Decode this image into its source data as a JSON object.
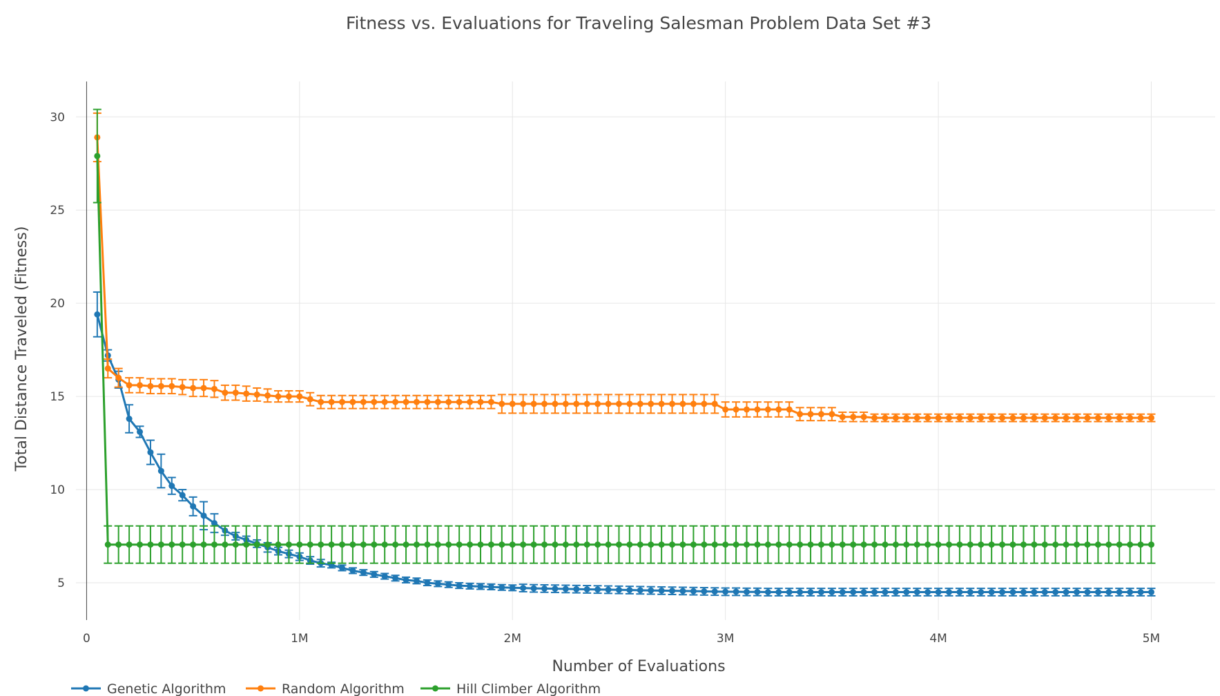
{
  "chart_data": {
    "type": "line",
    "title": "Fitness vs. Evaluations for Traveling Salesman Problem Data Set #3",
    "xlabel": "Number of Evaluations",
    "ylabel": "Total Distance Traveled (Fitness)",
    "xlim": [
      -50000,
      5300000
    ],
    "ylim": [
      3,
      31.9
    ],
    "x_ticks": [
      {
        "value": 0,
        "label": "0"
      },
      {
        "value": 1000000,
        "label": "1M"
      },
      {
        "value": 2000000,
        "label": "2M"
      },
      {
        "value": 3000000,
        "label": "3M"
      },
      {
        "value": 4000000,
        "label": "4M"
      },
      {
        "value": 5000000,
        "label": "5M"
      }
    ],
    "y_ticks": [
      {
        "value": 5,
        "label": "5"
      },
      {
        "value": 10,
        "label": "10"
      },
      {
        "value": 15,
        "label": "15"
      },
      {
        "value": 20,
        "label": "20"
      },
      {
        "value": 25,
        "label": "25"
      },
      {
        "value": 30,
        "label": "30"
      }
    ],
    "grid": true,
    "legend_position": "bottom-left",
    "x": {
      "start": 50000,
      "step": 50000,
      "count": 100
    },
    "series": [
      {
        "name": "Genetic Algorithm",
        "color": "#1f77b4",
        "values": [
          19.4,
          17.2,
          15.9,
          13.8,
          13.1,
          12.0,
          11.0,
          10.2,
          9.7,
          9.1,
          8.6,
          8.2,
          7.8,
          7.5,
          7.3,
          7.1,
          6.9,
          6.7,
          6.55,
          6.4,
          6.2,
          6.05,
          5.95,
          5.8,
          5.65,
          5.55,
          5.45,
          5.35,
          5.25,
          5.15,
          5.1,
          5.0,
          4.95,
          4.9,
          4.85,
          4.82,
          4.8,
          4.78,
          4.75,
          4.73,
          4.72,
          4.7,
          4.69,
          4.68,
          4.67,
          4.66,
          4.65,
          4.64,
          4.63,
          4.62,
          4.61,
          4.6,
          4.59,
          4.58,
          4.57,
          4.56,
          4.55,
          4.54,
          4.53,
          4.52,
          4.52,
          4.51,
          4.51,
          4.5,
          4.5,
          4.5,
          4.5,
          4.5,
          4.5,
          4.5,
          4.5,
          4.5,
          4.5,
          4.5,
          4.5,
          4.5,
          4.5,
          4.5,
          4.5,
          4.5,
          4.5,
          4.5,
          4.5,
          4.5,
          4.5,
          4.5,
          4.5,
          4.5,
          4.5,
          4.5,
          4.5,
          4.5,
          4.5,
          4.5,
          4.5,
          4.5,
          4.5,
          4.5,
          4.5,
          4.5
        ],
        "errors": [
          1.2,
          0.3,
          0.45,
          0.75,
          0.3,
          0.65,
          0.9,
          0.45,
          0.3,
          0.5,
          0.75,
          0.5,
          0.25,
          0.2,
          0.2,
          0.2,
          0.25,
          0.2,
          0.2,
          0.2,
          0.2,
          0.2,
          0.15,
          0.15,
          0.15,
          0.15,
          0.15,
          0.15,
          0.15,
          0.15,
          0.15,
          0.15,
          0.15,
          0.15,
          0.15,
          0.15,
          0.15,
          0.15,
          0.15,
          0.15,
          0.2,
          0.2,
          0.2,
          0.2,
          0.2,
          0.2,
          0.2,
          0.2,
          0.2,
          0.2,
          0.2,
          0.2,
          0.2,
          0.2,
          0.2,
          0.2,
          0.2,
          0.2,
          0.2,
          0.2,
          0.2,
          0.2,
          0.2,
          0.2,
          0.2,
          0.2,
          0.2,
          0.2,
          0.2,
          0.2,
          0.2,
          0.2,
          0.2,
          0.2,
          0.2,
          0.2,
          0.2,
          0.2,
          0.2,
          0.2,
          0.2,
          0.2,
          0.2,
          0.2,
          0.2,
          0.2,
          0.2,
          0.2,
          0.2,
          0.2,
          0.2,
          0.2,
          0.2,
          0.2,
          0.2,
          0.2,
          0.2,
          0.2,
          0.2,
          0.2
        ]
      },
      {
        "name": "Random Algorithm",
        "color": "#ff7f0e",
        "values": [
          28.9,
          16.5,
          16.0,
          15.6,
          15.6,
          15.55,
          15.55,
          15.55,
          15.5,
          15.45,
          15.45,
          15.4,
          15.2,
          15.2,
          15.15,
          15.1,
          15.05,
          15.0,
          15.0,
          15.0,
          14.85,
          14.7,
          14.7,
          14.7,
          14.7,
          14.7,
          14.7,
          14.7,
          14.7,
          14.7,
          14.7,
          14.7,
          14.7,
          14.7,
          14.7,
          14.7,
          14.7,
          14.7,
          14.6,
          14.6,
          14.6,
          14.6,
          14.6,
          14.6,
          14.6,
          14.6,
          14.6,
          14.6,
          14.6,
          14.6,
          14.6,
          14.6,
          14.6,
          14.6,
          14.6,
          14.6,
          14.6,
          14.6,
          14.6,
          14.3,
          14.3,
          14.3,
          14.3,
          14.3,
          14.3,
          14.3,
          14.05,
          14.05,
          14.05,
          14.05,
          13.9,
          13.9,
          13.9,
          13.85,
          13.85,
          13.85,
          13.85,
          13.85,
          13.85,
          13.85,
          13.85,
          13.85,
          13.85,
          13.85,
          13.85,
          13.85,
          13.85,
          13.85,
          13.85,
          13.85,
          13.85,
          13.85,
          13.85,
          13.85,
          13.85,
          13.85,
          13.85,
          13.85,
          13.85,
          13.85
        ],
        "errors": [
          1.3,
          0.5,
          0.5,
          0.4,
          0.4,
          0.4,
          0.4,
          0.4,
          0.4,
          0.45,
          0.45,
          0.45,
          0.4,
          0.4,
          0.4,
          0.35,
          0.35,
          0.3,
          0.3,
          0.3,
          0.35,
          0.35,
          0.35,
          0.35,
          0.35,
          0.35,
          0.35,
          0.35,
          0.35,
          0.35,
          0.35,
          0.35,
          0.35,
          0.35,
          0.35,
          0.35,
          0.35,
          0.35,
          0.5,
          0.5,
          0.5,
          0.5,
          0.5,
          0.5,
          0.5,
          0.5,
          0.5,
          0.5,
          0.5,
          0.5,
          0.5,
          0.5,
          0.5,
          0.5,
          0.5,
          0.5,
          0.5,
          0.5,
          0.5,
          0.4,
          0.4,
          0.4,
          0.4,
          0.4,
          0.4,
          0.4,
          0.35,
          0.35,
          0.35,
          0.35,
          0.25,
          0.25,
          0.25,
          0.2,
          0.2,
          0.2,
          0.2,
          0.2,
          0.2,
          0.2,
          0.2,
          0.2,
          0.2,
          0.2,
          0.2,
          0.2,
          0.2,
          0.2,
          0.2,
          0.2,
          0.2,
          0.2,
          0.2,
          0.2,
          0.2,
          0.2,
          0.2,
          0.2,
          0.2,
          0.2
        ]
      },
      {
        "name": "Hill Climber Algorithm",
        "color": "#2ca02c",
        "values": [
          27.9,
          7.05,
          7.05,
          7.05,
          7.05,
          7.05,
          7.05,
          7.05,
          7.05,
          7.05,
          7.05,
          7.05,
          7.05,
          7.05,
          7.05,
          7.05,
          7.05,
          7.05,
          7.05,
          7.05,
          7.05,
          7.05,
          7.05,
          7.05,
          7.05,
          7.05,
          7.05,
          7.05,
          7.05,
          7.05,
          7.05,
          7.05,
          7.05,
          7.05,
          7.05,
          7.05,
          7.05,
          7.05,
          7.05,
          7.05,
          7.05,
          7.05,
          7.05,
          7.05,
          7.05,
          7.05,
          7.05,
          7.05,
          7.05,
          7.05,
          7.05,
          7.05,
          7.05,
          7.05,
          7.05,
          7.05,
          7.05,
          7.05,
          7.05,
          7.05,
          7.05,
          7.05,
          7.05,
          7.05,
          7.05,
          7.05,
          7.05,
          7.05,
          7.05,
          7.05,
          7.05,
          7.05,
          7.05,
          7.05,
          7.05,
          7.05,
          7.05,
          7.05,
          7.05,
          7.05,
          7.05,
          7.05,
          7.05,
          7.05,
          7.05,
          7.05,
          7.05,
          7.05,
          7.05,
          7.05,
          7.05,
          7.05,
          7.05,
          7.05,
          7.05,
          7.05,
          7.05,
          7.05,
          7.05,
          7.05
        ],
        "errors": [
          2.5,
          1.0,
          1.0,
          1.0,
          1.0,
          1.0,
          1.0,
          1.0,
          1.0,
          1.0,
          1.0,
          1.0,
          1.0,
          1.0,
          1.0,
          1.0,
          1.0,
          1.0,
          1.0,
          1.0,
          1.0,
          1.0,
          1.0,
          1.0,
          1.0,
          1.0,
          1.0,
          1.0,
          1.0,
          1.0,
          1.0,
          1.0,
          1.0,
          1.0,
          1.0,
          1.0,
          1.0,
          1.0,
          1.0,
          1.0,
          1.0,
          1.0,
          1.0,
          1.0,
          1.0,
          1.0,
          1.0,
          1.0,
          1.0,
          1.0,
          1.0,
          1.0,
          1.0,
          1.0,
          1.0,
          1.0,
          1.0,
          1.0,
          1.0,
          1.0,
          1.0,
          1.0,
          1.0,
          1.0,
          1.0,
          1.0,
          1.0,
          1.0,
          1.0,
          1.0,
          1.0,
          1.0,
          1.0,
          1.0,
          1.0,
          1.0,
          1.0,
          1.0,
          1.0,
          1.0,
          1.0,
          1.0,
          1.0,
          1.0,
          1.0,
          1.0,
          1.0,
          1.0,
          1.0,
          1.0,
          1.0,
          1.0,
          1.0,
          1.0,
          1.0,
          1.0,
          1.0,
          1.0,
          1.0,
          1.0
        ]
      }
    ]
  }
}
